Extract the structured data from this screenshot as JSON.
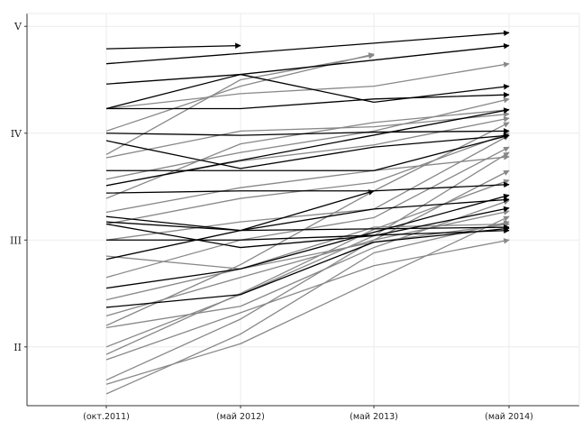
{
  "chart_data": {
    "type": "line",
    "title": "",
    "xlabel": "",
    "ylabel": "",
    "categories": [
      "(окт.2011)",
      "(май 2012)",
      "(май 2013)",
      "(май 2014)"
    ],
    "y_ticks": [
      {
        "value": 2,
        "label": "II"
      },
      {
        "value": 3,
        "label": "III"
      },
      {
        "value": 4,
        "label": "IV"
      },
      {
        "value": 5,
        "label": "V"
      }
    ],
    "ylim": [
      1.45,
      5.12
    ],
    "grid": true,
    "legend": "none",
    "colors": {
      "highlight": "#000000",
      "other": "#888888",
      "axis": "#333333",
      "grid": "#ebebeb"
    },
    "series": [
      {
        "group": "highlight",
        "values": [
          4.79,
          4.82,
          null,
          null
        ]
      },
      {
        "group": "highlight",
        "values": [
          4.65,
          null,
          null,
          4.94
        ]
      },
      {
        "group": "highlight",
        "values": [
          4.46,
          4.55,
          null,
          4.82
        ]
      },
      {
        "group": "highlight",
        "values": [
          4.23,
          4.55,
          4.29,
          4.44
        ]
      },
      {
        "group": "highlight",
        "values": [
          4.23,
          4.23,
          4.32,
          4.36
        ]
      },
      {
        "group": "highlight",
        "values": [
          4.0,
          3.98,
          4.01,
          4.02
        ]
      },
      {
        "group": "highlight",
        "values": [
          3.93,
          3.67,
          3.87,
          3.98
        ]
      },
      {
        "group": "highlight",
        "values": [
          3.65,
          3.65,
          3.65,
          3.98
        ]
      },
      {
        "group": "highlight",
        "values": [
          3.51,
          null,
          null,
          4.22
        ]
      },
      {
        "group": "highlight",
        "values": [
          3.44,
          3.46,
          3.46,
          3.52
        ]
      },
      {
        "group": "highlight",
        "values": [
          3.22,
          3.09,
          3.46,
          null
        ]
      },
      {
        "group": "highlight",
        "values": [
          3.17,
          3.09,
          null,
          3.12
        ]
      },
      {
        "group": "highlight",
        "values": [
          3.15,
          2.93,
          3.04,
          3.3
        ]
      },
      {
        "group": "highlight",
        "values": [
          3.0,
          3.0,
          null,
          3.09
        ]
      },
      {
        "group": "highlight",
        "values": [
          2.82,
          3.09,
          3.29,
          3.38
        ]
      },
      {
        "group": "highlight",
        "values": [
          2.55,
          2.73,
          null,
          3.42
        ]
      },
      {
        "group": "highlight",
        "values": [
          2.37,
          2.49,
          2.98,
          3.11
        ]
      },
      {
        "group": "other",
        "values": [
          4.23,
          4.37,
          4.44,
          4.65
        ]
      },
      {
        "group": "other",
        "values": [
          4.02,
          4.44,
          4.74,
          null
        ]
      },
      {
        "group": "other",
        "values": [
          3.77,
          4.02,
          4.06,
          4.18
        ]
      },
      {
        "group": "other",
        "values": [
          3.57,
          3.82,
          4.02,
          4.32
        ]
      },
      {
        "group": "other",
        "values": [
          3.51,
          3.74,
          3.89,
          4.14
        ]
      },
      {
        "group": "other",
        "values": [
          3.26,
          3.49,
          3.65,
          3.78
        ]
      },
      {
        "group": "other",
        "values": [
          3.15,
          3.39,
          3.54,
          4.0
        ]
      },
      {
        "group": "other",
        "values": [
          3.0,
          3.17,
          3.29,
          3.98
        ]
      },
      {
        "group": "other",
        "values": [
          2.85,
          2.73,
          3.12,
          3.15
        ]
      },
      {
        "group": "other",
        "values": [
          2.65,
          3.0,
          3.21,
          3.87
        ]
      },
      {
        "group": "other",
        "values": [
          2.44,
          2.73,
          2.98,
          3.15
        ]
      },
      {
        "group": "other",
        "values": [
          2.29,
          2.65,
          3.0,
          3.65
        ]
      },
      {
        "group": "other",
        "values": [
          2.18,
          2.38,
          2.93,
          3.37
        ]
      },
      {
        "group": "other",
        "values": [
          2.0,
          2.49,
          3.04,
          3.82
        ]
      },
      {
        "group": "other",
        "values": [
          1.88,
          2.32,
          2.76,
          3.0
        ]
      },
      {
        "group": "other",
        "values": [
          1.69,
          2.26,
          3.0,
          3.27
        ]
      },
      {
        "group": "other",
        "values": [
          1.65,
          2.03,
          null,
          3.22
        ]
      },
      {
        "group": "other",
        "values": [
          1.56,
          2.12,
          2.88,
          3.17
        ]
      },
      {
        "group": "other",
        "values": [
          1.93,
          2.5,
          3.1,
          3.56
        ]
      },
      {
        "group": "other",
        "values": [
          2.2,
          2.77,
          3.46,
          4.1
        ]
      },
      {
        "group": "other",
        "values": [
          3.8,
          4.5,
          4.73,
          null
        ]
      },
      {
        "group": "other",
        "values": [
          3.39,
          3.9,
          4.1,
          4.22
        ]
      }
    ]
  }
}
